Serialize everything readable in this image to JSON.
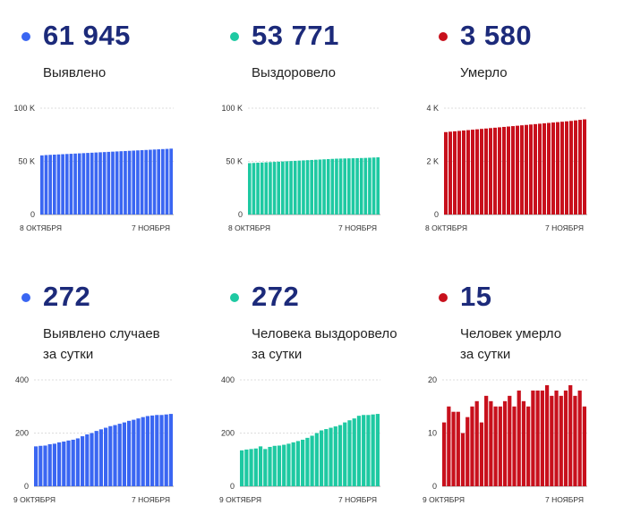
{
  "colors": {
    "blue": "#3a66f2",
    "teal": "#1ec9a2",
    "red": "#c8101c",
    "value_text": "#1c2a7a"
  },
  "panels": [
    {
      "value": "61 945",
      "label": "Выявлено"
    },
    {
      "value": "53 771",
      "label": "Выздоровело"
    },
    {
      "value": "3 580",
      "label": "Умерло"
    },
    {
      "value": "272",
      "label": "Выявлено случаев\nза сутки"
    },
    {
      "value": "272",
      "label": "Человека выздоровело\nза сутки"
    },
    {
      "value": "15",
      "label": "Человек умерло\nза сутки"
    }
  ],
  "chart_data": [
    {
      "type": "bar",
      "color": "blue",
      "ylim": [
        0,
        100000
      ],
      "yticks": [
        {
          "v": 0,
          "t": "0"
        },
        {
          "v": 50000,
          "t": "50 K"
        },
        {
          "v": 100000,
          "t": "100 K"
        }
      ],
      "x_start_label": "8 ОКТЯБРЯ",
      "x_end_label": "7 НОЯБРЯ",
      "values": [
        55600,
        55900,
        56100,
        56300,
        56500,
        56700,
        56900,
        57100,
        57300,
        57500,
        57700,
        57900,
        58100,
        58300,
        58500,
        58700,
        58900,
        59100,
        59300,
        59500,
        59700,
        59900,
        60100,
        60300,
        60500,
        60700,
        60900,
        61100,
        61300,
        61500,
        61700,
        61945
      ]
    },
    {
      "type": "bar",
      "color": "teal",
      "ylim": [
        0,
        100000
      ],
      "yticks": [
        {
          "v": 0,
          "t": "0"
        },
        {
          "v": 50000,
          "t": "50 K"
        },
        {
          "v": 100000,
          "t": "100 K"
        }
      ],
      "x_start_label": "8 ОКТЯБРЯ",
      "x_end_label": "7 НОЯБРЯ",
      "values": [
        48300,
        48500,
        48700,
        48900,
        49100,
        49300,
        49500,
        49700,
        49900,
        50100,
        50300,
        50500,
        50700,
        50900,
        51100,
        51300,
        51500,
        51700,
        51900,
        52100,
        52300,
        52500,
        52600,
        52700,
        52800,
        52900,
        53000,
        53100,
        53200,
        53400,
        53600,
        53771
      ]
    },
    {
      "type": "bar",
      "color": "red",
      "ylim": [
        0,
        4000
      ],
      "yticks": [
        {
          "v": 0,
          "t": "0"
        },
        {
          "v": 2000,
          "t": "2 K"
        },
        {
          "v": 4000,
          "t": "4 K"
        }
      ],
      "x_start_label": "8 ОКТЯБРЯ",
      "x_end_label": "7 НОЯБРЯ",
      "values": [
        3100,
        3115,
        3130,
        3145,
        3160,
        3175,
        3190,
        3205,
        3220,
        3235,
        3250,
        3265,
        3280,
        3295,
        3310,
        3325,
        3340,
        3355,
        3370,
        3385,
        3400,
        3415,
        3430,
        3445,
        3460,
        3475,
        3490,
        3505,
        3520,
        3540,
        3560,
        3580
      ]
    },
    {
      "type": "bar",
      "color": "blue",
      "ylim": [
        0,
        400
      ],
      "yticks": [
        {
          "v": 0,
          "t": "0"
        },
        {
          "v": 200,
          "t": "200"
        },
        {
          "v": 400,
          "t": "400"
        }
      ],
      "x_start_label": "9 ОКТЯБРЯ",
      "x_end_label": "7 НОЯБРЯ",
      "values": [
        150,
        152,
        153,
        158,
        160,
        165,
        168,
        172,
        175,
        180,
        188,
        195,
        200,
        208,
        214,
        220,
        226,
        230,
        235,
        240,
        246,
        250,
        255,
        260,
        264,
        266,
        268,
        268,
        270,
        272
      ]
    },
    {
      "type": "bar",
      "color": "teal",
      "ylim": [
        0,
        400
      ],
      "yticks": [
        {
          "v": 0,
          "t": "0"
        },
        {
          "v": 200,
          "t": "200"
        },
        {
          "v": 400,
          "t": "400"
        }
      ],
      "x_start_label": "9 ОКТЯБРЯ",
      "x_end_label": "7 НОЯБРЯ",
      "values": [
        135,
        138,
        140,
        142,
        150,
        140,
        148,
        152,
        153,
        156,
        160,
        165,
        170,
        175,
        182,
        190,
        200,
        210,
        215,
        220,
        225,
        230,
        240,
        248,
        255,
        265,
        268,
        268,
        270,
        272
      ]
    },
    {
      "type": "bar",
      "color": "red",
      "ylim": [
        0,
        20
      ],
      "yticks": [
        {
          "v": 0,
          "t": "0"
        },
        {
          "v": 10,
          "t": "10"
        },
        {
          "v": 20,
          "t": "20"
        }
      ],
      "x_start_label": "9 ОКТЯБРЯ",
      "x_end_label": "7 НОЯБРЯ",
      "values": [
        12,
        15,
        14,
        14,
        10,
        13,
        15,
        16,
        12,
        17,
        16,
        15,
        15,
        16,
        17,
        15,
        18,
        16,
        15,
        18,
        18,
        18,
        19,
        17,
        18,
        17,
        18,
        19,
        17,
        18,
        15
      ]
    }
  ]
}
